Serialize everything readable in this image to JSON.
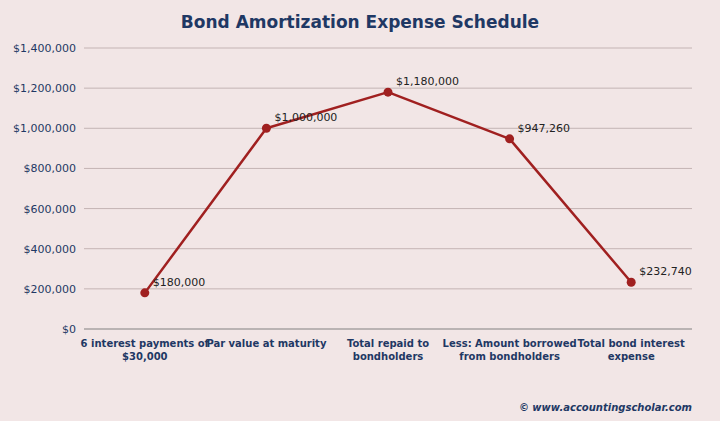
{
  "chart_data": {
    "type": "line",
    "title": "Bond Amortization Expense Schedule",
    "categories": [
      "6 interest payments of\n$30,000",
      "Par value at maturity",
      "Total repaid to\nbondholders",
      "Less: Amount borrowed\nfrom bondholders",
      "Total bond interest\nexpense"
    ],
    "values": [
      180000,
      1000000,
      1180000,
      947260,
      232740
    ],
    "value_labels": [
      "$180,000",
      "$1,000,000",
      "$1,180,000",
      "$947,260",
      "$232,740"
    ],
    "color": "#A02020",
    "ylim": [
      0,
      1400000
    ],
    "yticks": [
      {
        "value": 0,
        "label": "$0"
      },
      {
        "value": 200000,
        "label": "$200,000"
      },
      {
        "value": 400000,
        "label": "$400,000"
      },
      {
        "value": 600000,
        "label": "$600,000"
      },
      {
        "value": 800000,
        "label": "$800,000"
      },
      {
        "value": 1000000,
        "label": "$1,000,000"
      },
      {
        "value": 1200000,
        "label": "$1,200,000"
      },
      {
        "value": 1400000,
        "label": "$1,400,000"
      }
    ],
    "grid": true,
    "data_labels": true,
    "annotations": [
      "© www.accountingscholar.com"
    ]
  }
}
